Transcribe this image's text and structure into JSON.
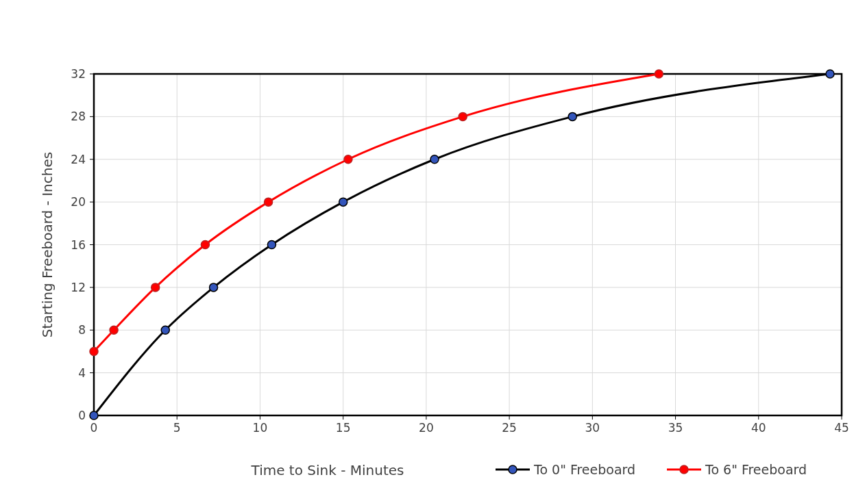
{
  "chart_data": {
    "type": "line",
    "xlabel": "Time to Sink - Minutes",
    "ylabel": "Starting Freeboard - Inches",
    "xlim": [
      0,
      45
    ],
    "xticks": [
      0,
      5,
      10,
      15,
      20,
      25,
      30,
      35,
      40,
      45
    ],
    "ylim": [
      0,
      32
    ],
    "yticks": [
      0,
      4,
      8,
      12,
      16,
      20,
      24,
      28,
      32
    ],
    "grid": true,
    "legend": "bottom",
    "marker": "circle",
    "line_style": "solid",
    "series": [
      {
        "name": "To 0\" Freeboard",
        "color": "#000000",
        "x": [
          0,
          4.3,
          7.2,
          10.7,
          15,
          20.5,
          28.8,
          44.3
        ],
        "values": [
          0,
          8,
          12,
          16,
          20,
          24,
          28,
          32
        ]
      },
      {
        "name": "To 6\" Freeboard",
        "color": "#ff0000",
        "x": [
          0,
          1.2,
          3.7,
          6.7,
          10.5,
          15.3,
          22.2,
          34
        ],
        "values": [
          6,
          8,
          12,
          16,
          20,
          24,
          28,
          32
        ]
      }
    ]
  }
}
